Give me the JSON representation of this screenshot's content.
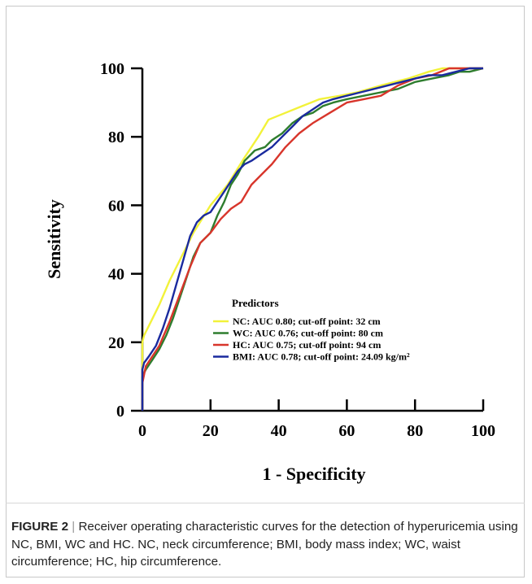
{
  "chart_data": {
    "type": "line",
    "xlabel": "1 - Specificity",
    "ylabel": "Sensitivity",
    "xlim": [
      0,
      100
    ],
    "ylim": [
      0,
      100
    ],
    "x_ticks": [
      0,
      20,
      40,
      60,
      80,
      100
    ],
    "y_ticks": [
      0,
      20,
      40,
      60,
      80,
      100
    ],
    "grid": false,
    "legend_title": "Predictors",
    "legend_position": "bottom-right",
    "series": [
      {
        "name": "NC: AUC 0.80; cut-off point: 32 cm",
        "color": "#f2f23a",
        "x": [
          0,
          0,
          0.5,
          2,
          5,
          8,
          12,
          15,
          20,
          25,
          30,
          34,
          37,
          42,
          47,
          52,
          58,
          63,
          70,
          78,
          84,
          88,
          92,
          100
        ],
        "y": [
          0,
          20,
          22,
          25,
          31,
          38,
          46,
          52,
          60,
          66,
          74,
          80,
          85,
          87,
          89,
          91,
          92,
          93,
          95,
          97,
          99,
          100,
          100,
          100
        ]
      },
      {
        "name": "WC: AUC 0.76; cut-off point: 80 cm",
        "color": "#2e7d2e",
        "x": [
          0,
          0,
          1,
          3,
          5,
          7,
          9,
          11,
          13,
          15,
          17,
          20,
          22,
          24,
          26,
          28,
          30,
          33,
          36,
          38,
          41,
          44,
          47,
          50,
          53,
          56,
          60,
          65,
          70,
          75,
          80,
          85,
          90,
          93,
          96,
          100
        ],
        "y": [
          0,
          10,
          12,
          15,
          18,
          22,
          27,
          33,
          39,
          45,
          49,
          52,
          57,
          61,
          66,
          69,
          73,
          76,
          77,
          79,
          81,
          84,
          86,
          87,
          89,
          90,
          91,
          92,
          93,
          94,
          96,
          97,
          98,
          99,
          99,
          100
        ]
      },
      {
        "name": "HC: AUC 0.75; cut-off point: 94 cm",
        "color": "#d8352b",
        "x": [
          0,
          0,
          1,
          3,
          5,
          8,
          11,
          14,
          17,
          20,
          23,
          26,
          29,
          32,
          35,
          38,
          42,
          46,
          50,
          55,
          60,
          65,
          70,
          75,
          80,
          85,
          90,
          100
        ],
        "y": [
          0,
          8,
          13,
          16,
          19,
          26,
          34,
          42,
          49,
          52,
          56,
          59,
          61,
          66,
          69,
          72,
          77,
          81,
          84,
          87,
          90,
          91,
          92,
          95,
          97,
          98,
          100,
          100
        ]
      },
      {
        "name": "BMI: AUC 0.78; cut-off point: 24.09 kg/m²",
        "color": "#1a2a9e",
        "x": [
          0,
          0,
          0.5,
          2,
          4,
          6,
          8,
          10,
          12,
          14,
          16,
          18,
          20,
          22,
          24,
          26,
          28,
          30,
          32,
          35,
          38,
          41,
          44,
          47,
          50,
          53,
          56,
          60,
          64,
          68,
          72,
          76,
          80,
          84,
          88,
          92,
          96,
          100
        ],
        "y": [
          0,
          12,
          14,
          16,
          19,
          24,
          30,
          37,
          44,
          51,
          55,
          57,
          58,
          61,
          64,
          67,
          70,
          72,
          73,
          75,
          77,
          80,
          83,
          86,
          88,
          90,
          91,
          92,
          93,
          94,
          95,
          96,
          97,
          98,
          98,
          99,
          100,
          100
        ]
      }
    ]
  },
  "caption": {
    "label": "FIGURE 2",
    "separator": "|",
    "text": "Receiver operating characteristic curves for the detection of hyperuricemia using NC, BMI, WC and HC. NC, neck circumference; BMI, body mass index; WC, waist circumference; HC, hip circumference."
  }
}
